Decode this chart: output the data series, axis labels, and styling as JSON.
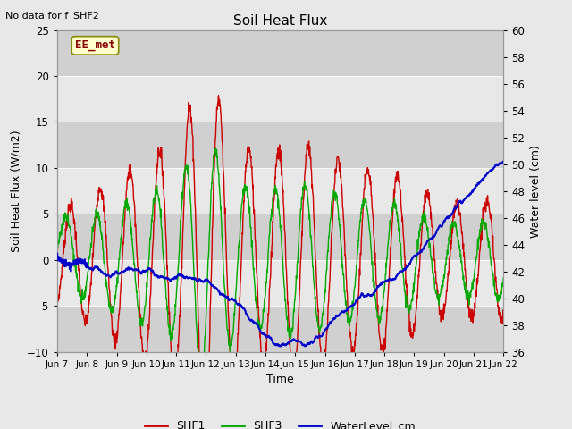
{
  "title": "Soil Heat Flux",
  "note": "No data for f_SHF2",
  "ylabel_left": "Soil Heat Flux (W/m2)",
  "ylabel_right": "Water level (cm)",
  "xlabel": "Time",
  "legend_label": "EE_met",
  "ylim_left": [
    -10,
    25
  ],
  "ylim_right": [
    36,
    60
  ],
  "xtick_labels": [
    "Jun 7",
    "Jun 8",
    "Jun 9",
    "Jun 10",
    "Jun 11",
    "Jun 12",
    "Jun 13",
    "Jun 14",
    "Jun 15",
    "Jun 16",
    "Jun 17",
    "Jun 18",
    "Jun 19",
    "Jun 20",
    "Jun 21",
    "Jun 22"
  ],
  "yticks_left": [
    -10,
    -5,
    0,
    5,
    10,
    15,
    20,
    25
  ],
  "yticks_right": [
    36,
    38,
    40,
    42,
    44,
    46,
    48,
    50,
    52,
    54,
    56,
    58,
    60
  ],
  "shf1_color": "#cc0000",
  "shf3_color": "#00aa00",
  "water_color": "#0000cc",
  "bg_color": "#e8e8e8",
  "band_colors": [
    "#d0d0d0",
    "#e8e8e8"
  ],
  "band_edges": [
    -10,
    -5,
    0,
    5,
    10,
    15,
    20,
    25
  ],
  "eemet_text_color": "#880000",
  "eemet_bg": "#ffffcc",
  "eemet_edge": "#888800"
}
